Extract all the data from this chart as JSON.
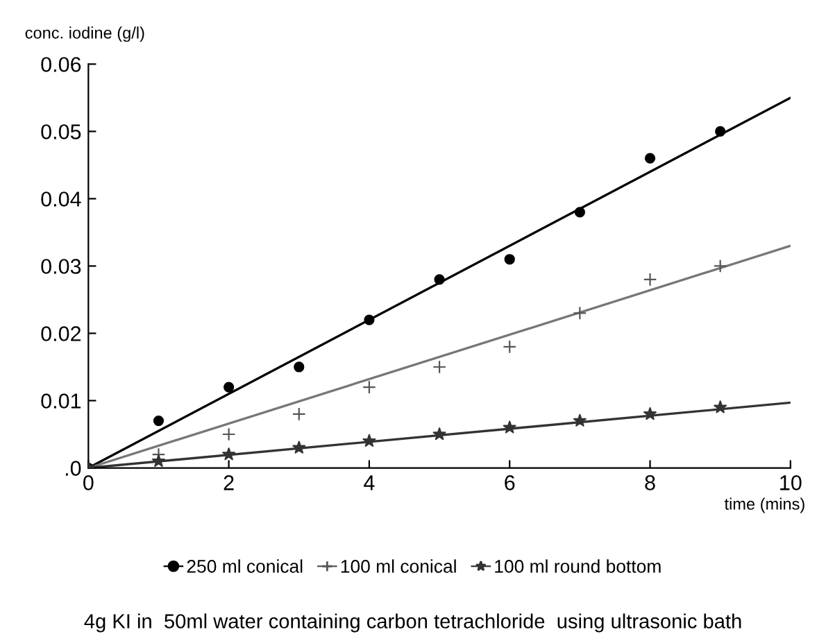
{
  "chart_data": {
    "type": "scatter",
    "xlabel": "time (mins)",
    "ylabel": "conc. iodine (g/l)",
    "xlim": [
      0,
      10
    ],
    "xticks": [
      0,
      2,
      4,
      6,
      8,
      10
    ],
    "ylim": [
      0,
      0.06
    ],
    "yticks": [
      {
        "value": 0,
        "label": ".0"
      },
      0.01,
      0.02,
      0.03,
      0.04,
      0.05,
      0.06
    ],
    "grid": false,
    "legend": "bottom",
    "series": [
      {
        "name": "250 ml conical",
        "marker": "circle",
        "color": "#000000",
        "x": [
          0,
          1,
          2,
          3,
          4,
          5,
          6,
          7,
          8,
          9
        ],
        "values": [
          0,
          0.007,
          0.012,
          0.015,
          0.022,
          0.028,
          0.031,
          0.038,
          0.046,
          0.05
        ]
      },
      {
        "name": "100 ml conical",
        "marker": "cross",
        "color": "#555555",
        "x": [
          0,
          1,
          2,
          3,
          4,
          5,
          6,
          7,
          8,
          9
        ],
        "values": [
          0,
          0.002,
          0.005,
          0.008,
          0.012,
          0.015,
          0.018,
          0.023,
          0.028,
          0.03
        ]
      },
      {
        "name": "100 ml round bottom",
        "marker": "star",
        "color": "#333333",
        "x": [
          0,
          1,
          2,
          3,
          4,
          5,
          6,
          7,
          8,
          9
        ],
        "values": [
          0,
          0.001,
          0.002,
          0.003,
          0.004,
          0.005,
          0.006,
          0.007,
          0.008,
          0.009
        ]
      },
      {
        "type": "line",
        "color": "#000000",
        "x": [
          0,
          10
        ],
        "values": [
          0,
          0.055
        ]
      },
      {
        "type": "line",
        "color": "#777777",
        "x": [
          0,
          10
        ],
        "values": [
          0,
          0.033
        ]
      },
      {
        "type": "line",
        "color": "#333333",
        "x": [
          0,
          10
        ],
        "values": [
          0,
          0.0097
        ]
      }
    ],
    "annotations": [
      "4g KI in  50ml water containing carbon tetrachloride  using ultrasonic bath"
    ]
  }
}
